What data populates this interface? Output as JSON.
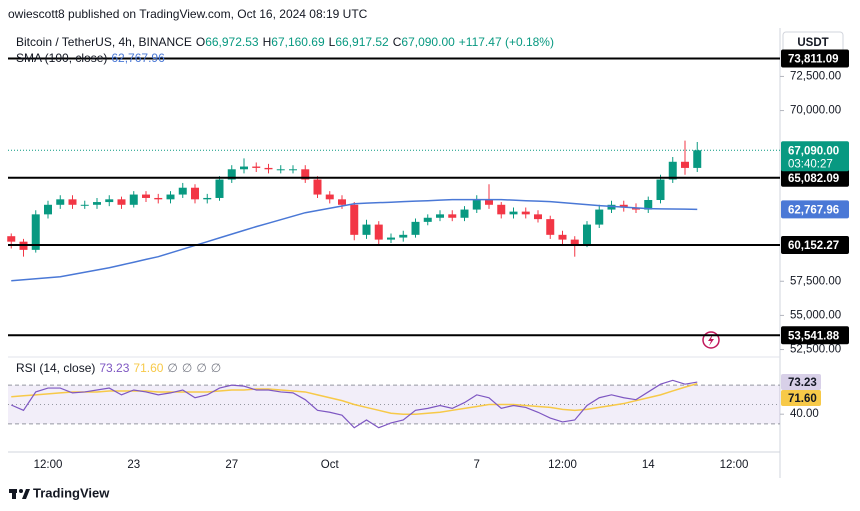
{
  "header": {
    "published": "owiescott8 published on TradingView.com, Oct 16, 2024 08:19 UTC",
    "currency": "USDT",
    "footer": "TradingView"
  },
  "chart_data": [
    {
      "type": "candlestick",
      "title": "Bitcoin / TetherUS, 4h, BINANCE",
      "ohlc_legend": [
        {
          "key": "O",
          "value": "66,972.53"
        },
        {
          "key": "H",
          "value": "67,160.69"
        },
        {
          "key": "L",
          "value": "66,917.52"
        },
        {
          "key": "C",
          "value": "67,090.00"
        }
      ],
      "change": "+117.47 (+0.18%)",
      "categories": [
        null,
        null,
        null,
        "12:00",
        null,
        null,
        null,
        null,
        null,
        null,
        "23",
        null,
        null,
        null,
        null,
        null,
        null,
        null,
        "27",
        null,
        null,
        null,
        null,
        null,
        null,
        null,
        "Oct",
        null,
        null,
        null,
        null,
        null,
        null,
        null,
        null,
        null,
        null,
        null,
        "7",
        null,
        null,
        null,
        null,
        null,
        null,
        "12:00",
        null,
        null,
        null,
        null,
        null,
        null,
        "14",
        null,
        null,
        null,
        null,
        null,
        null,
        "12:00",
        null,
        null,
        null
      ],
      "open": [
        60800,
        60400,
        59800,
        62400,
        63100,
        63500,
        63100,
        63100,
        63300,
        63500,
        63100,
        63850,
        63600,
        63500,
        63850,
        64350,
        63500,
        63600,
        64950,
        65700,
        65900,
        65800,
        65700,
        65700,
        65700,
        64950,
        63850,
        63500,
        63100,
        60900,
        61650,
        60550,
        60700,
        60900,
        61850,
        62150,
        62400,
        62150,
        62750,
        63450,
        63100,
        62400,
        62600,
        62400,
        62050,
        60900,
        60550,
        60200,
        61650,
        62750,
        63100,
        62900,
        62750,
        63450,
        64950,
        66250,
        65800,
        null,
        null,
        null,
        null,
        null,
        null
      ],
      "high": [
        61000,
        60600,
        62700,
        63400,
        63800,
        63800,
        63400,
        63600,
        63800,
        63700,
        64100,
        64100,
        63900,
        64100,
        64700,
        64600,
        63900,
        65200,
        66000,
        66500,
        66200,
        66100,
        66000,
        66000,
        66000,
        65200,
        64100,
        63800,
        63300,
        62000,
        61900,
        61000,
        61200,
        62100,
        62400,
        62700,
        62700,
        63000,
        63800,
        64600,
        63300,
        62900,
        62900,
        62700,
        62300,
        61200,
        60800,
        61900,
        63100,
        63400,
        63400,
        63200,
        63700,
        65300,
        66600,
        67800,
        67700,
        null,
        null,
        null,
        null,
        null,
        null
      ],
      "low": [
        59900,
        59300,
        59600,
        62100,
        62800,
        62800,
        62800,
        62800,
        63000,
        62800,
        62900,
        63300,
        63200,
        63200,
        63600,
        63200,
        63200,
        63400,
        64700,
        65400,
        65500,
        65400,
        65400,
        65400,
        64700,
        63600,
        63200,
        62800,
        60500,
        60600,
        60200,
        60300,
        60400,
        60700,
        61600,
        61900,
        61900,
        61900,
        62500,
        62800,
        62100,
        62100,
        62100,
        61800,
        60600,
        60200,
        59300,
        60000,
        61400,
        62500,
        62600,
        62500,
        62500,
        63200,
        64700,
        65300,
        65500,
        null,
        null,
        null,
        null,
        null,
        null
      ],
      "close": [
        60400,
        59800,
        62400,
        63100,
        63500,
        63100,
        63100,
        63300,
        63500,
        63100,
        63850,
        63600,
        63500,
        63850,
        64350,
        63500,
        63600,
        64950,
        65700,
        65900,
        65800,
        65700,
        65700,
        65700,
        64950,
        63850,
        63500,
        63100,
        60900,
        61650,
        60550,
        60700,
        60900,
        61850,
        62150,
        62400,
        62150,
        62750,
        63450,
        63100,
        62400,
        62600,
        62400,
        62050,
        60900,
        60550,
        60200,
        61650,
        62750,
        63100,
        62900,
        62750,
        63450,
        64950,
        66250,
        65800,
        67090,
        null,
        null,
        null,
        null,
        null,
        null
      ],
      "up_color": "#089981",
      "down_color": "#f23645",
      "ylim": [
        52100,
        75900
      ],
      "yticks": [
        {
          "value": 52500,
          "label": "52,500.00"
        },
        {
          "value": 55000,
          "label": "55,000.00"
        },
        {
          "value": 57500,
          "label": "57,500.00"
        },
        {
          "value": 70000,
          "label": "70,000.00"
        },
        {
          "value": 72500,
          "label": "72,500.00"
        }
      ],
      "grid": false,
      "levels": [
        {
          "value": 73811.09,
          "label": "73,811.09"
        },
        {
          "value": 65082.09,
          "label": "65,082.09"
        },
        {
          "value": 60152.27,
          "label": "60,152.27"
        },
        {
          "value": 53541.88,
          "label": "53,541.88"
        }
      ],
      "level_color": "#000000",
      "last_price": {
        "value": 67090,
        "label": "67,090.00",
        "countdown": "03:40:27",
        "color": "#089981"
      },
      "overlay": {
        "type": "line",
        "name": "SMA (100, close)",
        "color": "#4a78d6",
        "last_label": "62,767.96",
        "values": [
          57540,
          57610,
          57680,
          57760,
          57830,
          57995,
          58160,
          58325,
          58490,
          58690,
          58895,
          59100,
          59300,
          59575,
          59850,
          60125,
          60400,
          60675,
          60950,
          61225,
          61500,
          61755,
          62010,
          62265,
          62520,
          62685,
          62850,
          63015,
          63180,
          63220,
          63255,
          63290,
          63330,
          63365,
          63400,
          63440,
          63475,
          63475,
          63475,
          63475,
          63475,
          63440,
          63400,
          63365,
          63330,
          63255,
          63185,
          63110,
          63040,
          62985,
          62930,
          62870,
          62815,
          62805,
          62790,
          62780,
          62767.96,
          null,
          null,
          null,
          null,
          null,
          null
        ]
      }
    },
    {
      "type": "line",
      "title": "RSI (14, close)",
      "inputs": [
        "∅",
        "∅",
        "∅",
        "∅"
      ],
      "ylim": [
        3,
        96
      ],
      "yticks": [
        {
          "value": 40,
          "label": "40.00"
        }
      ],
      "bands": {
        "upper": 70,
        "middle": 50,
        "lower": 30,
        "fill": "rgba(126,87,194,0.1)"
      },
      "series": [
        {
          "color": "#7e57c2",
          "last_label": "73.23",
          "label_bg": "#d8d0e8",
          "values": [
            49.5,
            44,
            63,
            67,
            67,
            62,
            63,
            65,
            67,
            60,
            65,
            63,
            60,
            62,
            65,
            57,
            60,
            67,
            70,
            69,
            65,
            65,
            63,
            62,
            55,
            44,
            42,
            39,
            26,
            34,
            26,
            31,
            34,
            44,
            46,
            49,
            46,
            52,
            60,
            57,
            46,
            49,
            47,
            42,
            36,
            32,
            34,
            49,
            57,
            60,
            57,
            55,
            63,
            71,
            75,
            71,
            73.23,
            null,
            null,
            null,
            null,
            null,
            null
          ]
        },
        {
          "color": "#f7c948",
          "last_label": "71.60",
          "label_bg": "#f7c948",
          "values": [
            58,
            59,
            60,
            61,
            62,
            63,
            63,
            63,
            64,
            64,
            64,
            64,
            63,
            63,
            63,
            63,
            63,
            64,
            65,
            65,
            66,
            66,
            65,
            64,
            63,
            60,
            57,
            54,
            50,
            47,
            44,
            41,
            40,
            40,
            41,
            42,
            44,
            46,
            48,
            50,
            50,
            50,
            49,
            48,
            47,
            45,
            44,
            45,
            47,
            49,
            51,
            54,
            57,
            60,
            64,
            68,
            71.6,
            null,
            null,
            null,
            null,
            null,
            null
          ]
        }
      ]
    }
  ]
}
